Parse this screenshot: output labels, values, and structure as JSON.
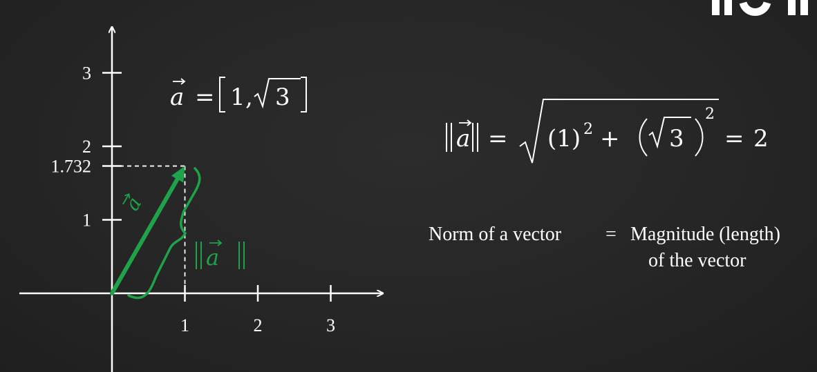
{
  "colors": {
    "background": "#262626",
    "axis": "#ffffff",
    "vector": "#1ea34a",
    "text": "#ffffff"
  },
  "graph": {
    "y_ticks": [
      {
        "value": 3,
        "label": "3"
      },
      {
        "value": 2,
        "label": "2"
      },
      {
        "value": 1.732,
        "label": "1.732"
      },
      {
        "value": 1,
        "label": "1"
      }
    ],
    "x_ticks": [
      {
        "value": 1,
        "label": "1"
      },
      {
        "value": 2,
        "label": "2"
      },
      {
        "value": 3,
        "label": "3"
      }
    ],
    "vector": {
      "x": 1,
      "y": 1.732,
      "label": "a",
      "norm_label": "a"
    }
  },
  "vector_definition": {
    "lhs": "a",
    "equals": "=",
    "x_component": "1",
    "comma": ",",
    "y_component": "3"
  },
  "norm_equation": {
    "lhs": "a",
    "equals": "=",
    "term1": "(1)",
    "exp1": "2",
    "plus": "+",
    "term2_radicand": "3",
    "exp2": "2",
    "result_equals": "=",
    "result": "2"
  },
  "explanation": {
    "left": "Norm of a vector",
    "equals": "=",
    "right_line1": "Magnitude (length)",
    "right_line2": "of the vector"
  }
}
